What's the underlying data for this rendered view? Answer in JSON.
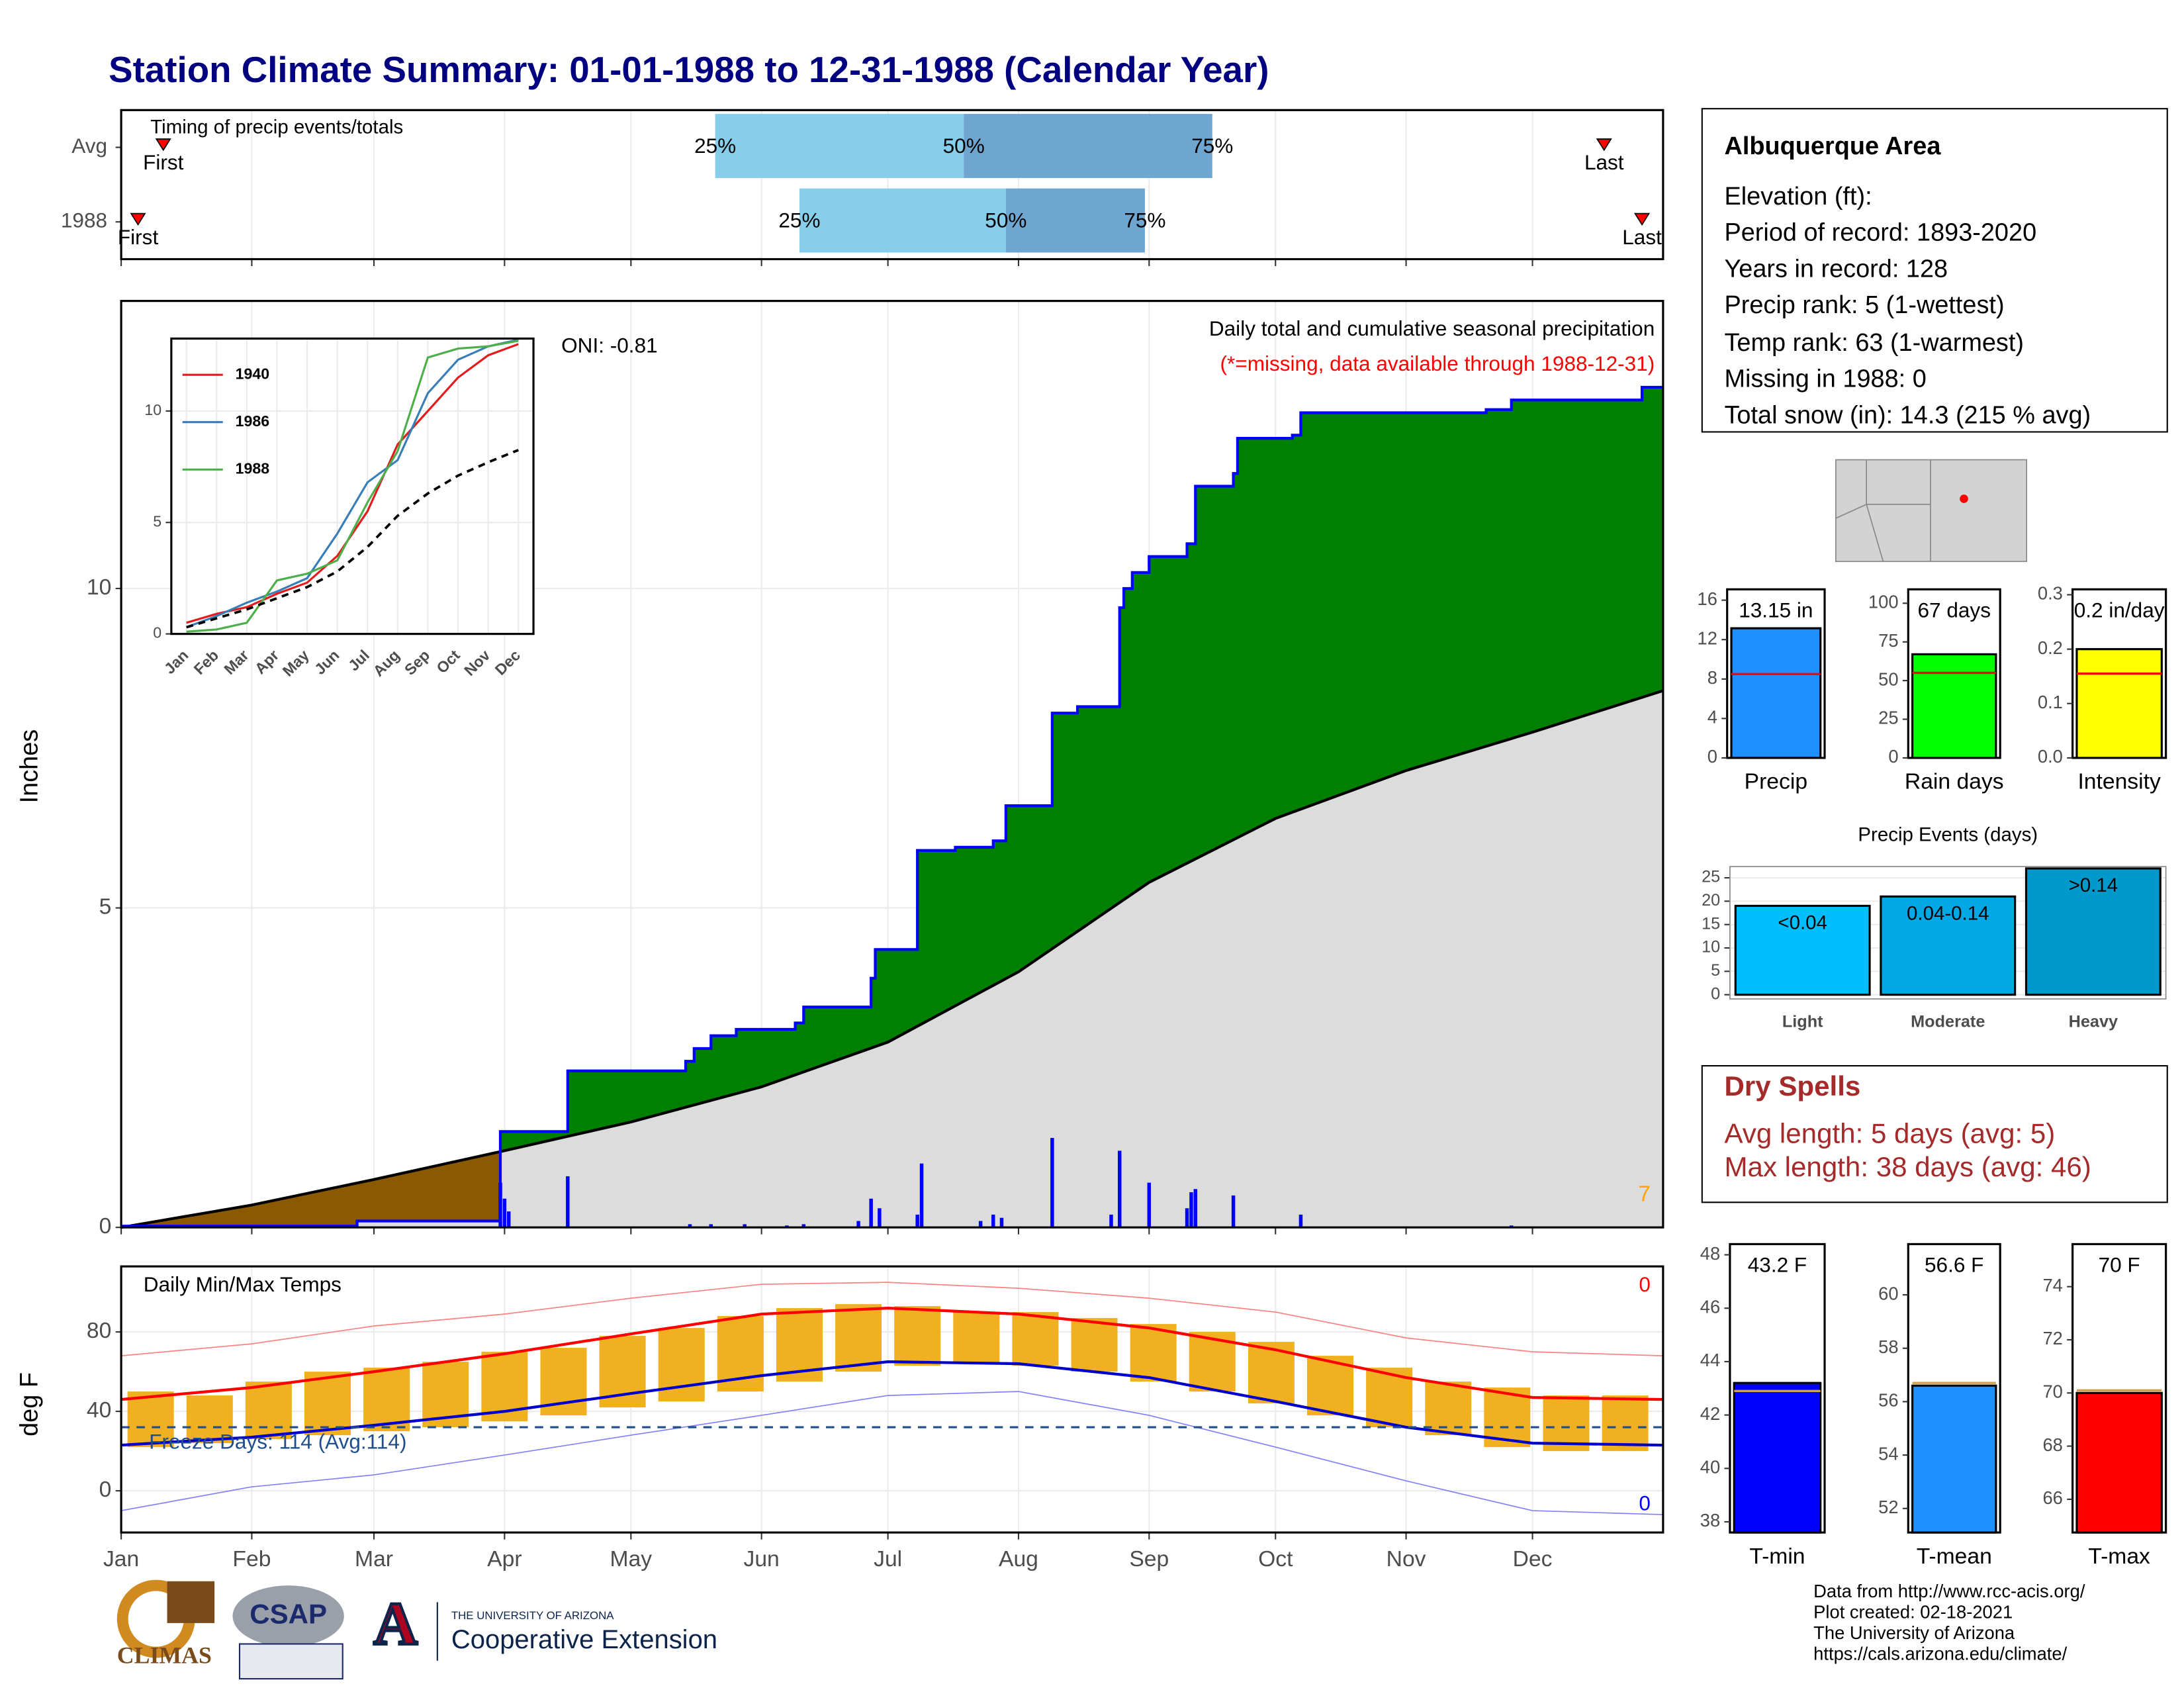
{
  "title": "Station Climate Summary: 01-01-1988 to 12-31-1988 (Calendar Year)",
  "chart_data": [
    {
      "type": "timing",
      "title": "Timing of precip events/totals",
      "xlim": [
        0,
        366
      ],
      "xticks": [
        0,
        31,
        60,
        91,
        121,
        152,
        182,
        213,
        244,
        274,
        305,
        335
      ],
      "point_labels": [
        "First",
        "25%",
        "50%",
        "75%",
        "Last"
      ],
      "colors": [
        "#87ceeb",
        "#6fa6cf"
      ],
      "marker_color": "#ff0000",
      "rows": [
        {
          "name": "Avg",
          "values": [
            10,
            141,
            200,
            259,
            352
          ]
        },
        {
          "name": "1988",
          "values": [
            4,
            161,
            210,
            243,
            361
          ]
        }
      ]
    },
    {
      "type": "area_step",
      "ylabel": "Inches",
      "xlim": [
        0,
        366
      ],
      "ylim": [
        0,
        14.5
      ],
      "yticks": [
        0,
        5,
        10
      ],
      "xticks": [
        0,
        31,
        60,
        91,
        121,
        152,
        182,
        213,
        244,
        274,
        305,
        335
      ],
      "grid": true,
      "above_color": "#008000",
      "below_color": "#8b5a00",
      "base_color": "#dcdcdc",
      "series": [
        {
          "color": "#0000ff",
          "x": [
            0,
            56,
            90,
            106,
            134,
            136,
            140,
            146,
            160,
            162,
            178,
            179,
            189,
            198,
            207,
            210,
            221,
            227,
            237,
            238,
            240,
            244,
            253,
            255,
            264,
            265,
            278,
            280,
            324,
            330,
            361
          ],
          "values": [
            0.02,
            0.1,
            1.5,
            2.45,
            2.6,
            2.8,
            3.0,
            3.1,
            3.2,
            3.45,
            3.9,
            4.35,
            5.9,
            5.95,
            6.05,
            6.6,
            8.05,
            8.15,
            9.7,
            10.0,
            10.25,
            10.5,
            10.7,
            11.6,
            11.8,
            12.35,
            12.4,
            12.75,
            12.8,
            12.95,
            13.15
          ]
        },
        {
          "color": "#000000",
          "x": [
            0,
            31,
            60,
            91,
            121,
            152,
            182,
            213,
            244,
            274,
            305,
            335,
            366
          ],
          "values": [
            0,
            0.35,
            0.75,
            1.2,
            1.65,
            2.2,
            2.9,
            4.0,
            5.4,
            6.4,
            7.15,
            7.75,
            8.4
          ]
        }
      ],
      "daily": {
        "color": "#0000ff",
        "x": [
          56,
          90,
          91,
          92,
          106,
          135,
          140,
          148,
          158,
          162,
          175,
          178,
          180,
          189,
          190,
          204,
          207,
          209,
          221,
          235,
          237,
          244,
          253,
          254,
          255,
          264,
          280,
          330
        ],
        "values": [
          0.02,
          0.7,
          0.45,
          0.25,
          0.8,
          0.05,
          0.05,
          0.05,
          0.03,
          0.05,
          0.1,
          0.45,
          0.3,
          0.2,
          1.0,
          0.1,
          0.2,
          0.15,
          1.4,
          0.2,
          1.2,
          0.7,
          0.3,
          0.55,
          0.6,
          0.5,
          0.2,
          0.03
        ]
      },
      "annotations": [
        {
          "text": "Daily total and cumulative seasonal precipitation",
          "color": "#000000"
        },
        {
          "text": "(*=missing, data available through 1988-12-31)",
          "color": "#ff0000"
        },
        {
          "text": "ONI: -0.81",
          "color": "#000000"
        },
        {
          "text": "7",
          "color": "#ffa500"
        }
      ]
    },
    {
      "type": "line",
      "categories": [
        "Jan",
        "Feb",
        "Mar",
        "Apr",
        "May",
        "Jun",
        "Jul",
        "Aug",
        "Sep",
        "Oct",
        "Nov",
        "Dec"
      ],
      "ylim": [
        0,
        13.25
      ],
      "yticks": [
        0,
        5,
        10
      ],
      "grid": true,
      "series": [
        {
          "name": "1940",
          "color": "#e41a1c",
          "values": [
            0.5,
            0.9,
            1.2,
            1.8,
            2.3,
            3.5,
            5.5,
            8.5,
            10.0,
            11.5,
            12.5,
            13.0
          ]
        },
        {
          "name": "1986",
          "color": "#377eb8",
          "values": [
            0.3,
            0.8,
            1.4,
            1.9,
            2.5,
            4.5,
            6.8,
            7.8,
            10.8,
            12.3,
            12.9,
            13.2
          ]
        },
        {
          "name": "1988",
          "color": "#4daf4a",
          "values": [
            0.1,
            0.2,
            0.5,
            2.4,
            2.7,
            3.3,
            5.9,
            8.2,
            12.4,
            12.8,
            12.9,
            13.15
          ]
        },
        {
          "color": "#000000",
          "dash": true,
          "values": [
            0.3,
            0.7,
            1.1,
            1.6,
            2.1,
            2.8,
            3.9,
            5.3,
            6.3,
            7.1,
            7.7,
            8.25
          ]
        }
      ]
    },
    {
      "type": "temps",
      "ylabel": "deg F",
      "xlim": [
        0,
        366
      ],
      "ylim": [
        -21,
        113
      ],
      "yticks": [
        0,
        40,
        80
      ],
      "grid": true,
      "xticks": [
        {
          "value": 0,
          "label": "Jan"
        },
        {
          "value": 31,
          "label": "Feb"
        },
        {
          "value": 60,
          "label": "Mar"
        },
        {
          "value": 91,
          "label": "Apr"
        },
        {
          "value": 121,
          "label": "May"
        },
        {
          "value": 152,
          "label": "Jun"
        },
        {
          "value": 182,
          "label": "Jul"
        },
        {
          "value": 213,
          "label": "Aug"
        },
        {
          "value": 244,
          "label": "Sep"
        },
        {
          "value": 274,
          "label": "Oct"
        },
        {
          "value": 305,
          "label": "Nov"
        },
        {
          "value": 335,
          "label": "Dec"
        }
      ],
      "freeze_line": 32,
      "freeze_color": "#1f4e8c",
      "ranges": {
        "color": "#f0b020",
        "x": [
          7,
          21,
          35,
          49,
          63,
          77,
          91,
          105,
          119,
          133,
          147,
          161,
          175,
          189,
          203,
          217,
          231,
          245,
          259,
          273,
          287,
          301,
          315,
          329,
          343,
          357
        ],
        "low": [
          22,
          24,
          26,
          28,
          30,
          32,
          35,
          38,
          42,
          45,
          50,
          55,
          60,
          63,
          64,
          63,
          60,
          55,
          50,
          44,
          38,
          32,
          28,
          22,
          20,
          20
        ],
        "high": [
          50,
          48,
          55,
          60,
          62,
          65,
          70,
          72,
          78,
          82,
          88,
          92,
          94,
          93,
          90,
          90,
          87,
          84,
          80,
          75,
          68,
          62,
          55,
          52,
          48,
          48
        ]
      },
      "series": [
        {
          "color": "#ff8080",
          "line_width": 0.8,
          "x": [
            0,
            31,
            60,
            91,
            121,
            152,
            182,
            213,
            244,
            274,
            305,
            335,
            366
          ],
          "values": [
            68,
            74,
            83,
            89,
            97,
            104,
            105,
            102,
            97,
            90,
            77,
            70,
            68
          ]
        },
        {
          "color": "#8080ff",
          "line_width": 0.8,
          "x": [
            0,
            31,
            60,
            91,
            121,
            152,
            182,
            213,
            244,
            274,
            305,
            335,
            366
          ],
          "values": [
            -10,
            2,
            8,
            18,
            28,
            38,
            48,
            50,
            38,
            22,
            5,
            -10,
            -12
          ]
        },
        {
          "color": "#ff0000",
          "line_width": 2,
          "x": [
            0,
            31,
            60,
            91,
            121,
            152,
            182,
            213,
            244,
            274,
            305,
            335,
            366
          ],
          "values": [
            46,
            52,
            60,
            69,
            79,
            89,
            92,
            89,
            82,
            71,
            57,
            47,
            46
          ]
        },
        {
          "color": "#0000cc",
          "line_width": 2,
          "x": [
            0,
            31,
            60,
            91,
            121,
            152,
            182,
            213,
            244,
            274,
            305,
            335,
            366
          ],
          "values": [
            23,
            27,
            33,
            40,
            49,
            58,
            65,
            64,
            57,
            45,
            32,
            24,
            23
          ]
        }
      ],
      "annotations": [
        {
          "text": "Daily Min/Max Temps",
          "color": "#000000"
        },
        {
          "text": "Freeze Days: 114 (Avg:114)",
          "color": "#1f4e8c"
        },
        {
          "text": "0",
          "color": "#ff0000"
        },
        {
          "text": "0",
          "color": "#0000ff"
        }
      ]
    },
    {
      "type": "summary_bar",
      "label": "Precip",
      "value": 13.15,
      "value_label": "13.15 in",
      "normal": 8.5,
      "color": "#1e90ff",
      "normal_color": "#ff0000",
      "ylim": [
        0,
        17.1
      ],
      "yticks": [
        0,
        4,
        8,
        12,
        16
      ]
    },
    {
      "type": "summary_bar",
      "label": "Rain days",
      "value": 67,
      "value_label": "67 days",
      "normal": 55,
      "color": "#00ff00",
      "normal_color": "#ff0000",
      "ylim": [
        0,
        109
      ],
      "yticks": [
        0,
        25,
        50,
        75,
        100
      ]
    },
    {
      "type": "summary_bar",
      "label": "Intensity",
      "value": 0.2,
      "value_label": "0.2 in/day",
      "normal": 0.155,
      "color": "#ffff00",
      "normal_color": "#ff0000",
      "ylim": [
        0,
        0.31
      ],
      "yticks": [
        {
          "value": 0,
          "label": "0.0"
        },
        0.1,
        0.2,
        0.3
      ]
    },
    {
      "type": "bar",
      "title": "Precip Events (days)",
      "categories": [
        "Light",
        "Moderate",
        "Heavy"
      ],
      "values": [
        19,
        21,
        27
      ],
      "bin_labels": [
        "<0.04",
        "0.04-0.14",
        ">0.14"
      ],
      "colors": [
        "#00bfff",
        "#00a9e6",
        "#0099cc"
      ],
      "ylim": [
        -0.9,
        27.4
      ],
      "yticks": [
        0,
        5,
        10,
        15,
        20,
        25
      ],
      "grid": true
    },
    {
      "type": "summary_bar",
      "label": "T-min",
      "value": 43.2,
      "value_label": "43.2 F",
      "normal": 42.9,
      "color": "#0000ff",
      "normal_color": "#d4a050",
      "ylim": [
        37.6,
        48.4
      ],
      "yticks": [
        38,
        40,
        42,
        44,
        46,
        48
      ]
    },
    {
      "type": "summary_bar",
      "label": "T-mean",
      "value": 56.6,
      "value_label": "56.6 F",
      "normal": 56.7,
      "color": "#1e90ff",
      "normal_color": "#d4a050",
      "ylim": [
        51.1,
        61.9
      ],
      "yticks": [
        52,
        54,
        56,
        58,
        60
      ]
    },
    {
      "type": "summary_bar",
      "label": "T-max",
      "value": 70,
      "value_label": "70 F",
      "normal": 70.1,
      "color": "#ff0000",
      "normal_color": "#d4a050",
      "ylim": [
        64.75,
        75.6
      ],
      "yticks": [
        66,
        68,
        70,
        72,
        74
      ]
    }
  ],
  "info": {
    "title": "Albuquerque Area",
    "lines": [
      "Elevation (ft):",
      "Period of record: 1893-2020",
      "Years in record: 128",
      "Precip rank: 5 (1-wettest)",
      "Temp rank: 63 (1-warmest)",
      "Missing in 1988: 0",
      "Total snow (in): 14.3 (215 % avg)"
    ]
  },
  "dry_spells": {
    "title": "Dry Spells",
    "lines": [
      "Avg length: 5 days (avg: 5)",
      "Max length: 38 days (avg: 46)"
    ]
  },
  "footer": [
    "Data from http://www.rcc-acis.org/",
    "Plot created: 02-18-2021",
    "The University of Arizona",
    "https://cals.arizona.edu/climate/"
  ],
  "logos": {
    "climas": "CLIMAS",
    "csap": "CSAP",
    "ua_letter": "A",
    "ua_small": "THE UNIVERSITY OF ARIZONA",
    "ua_big": "Cooperative Extension"
  }
}
